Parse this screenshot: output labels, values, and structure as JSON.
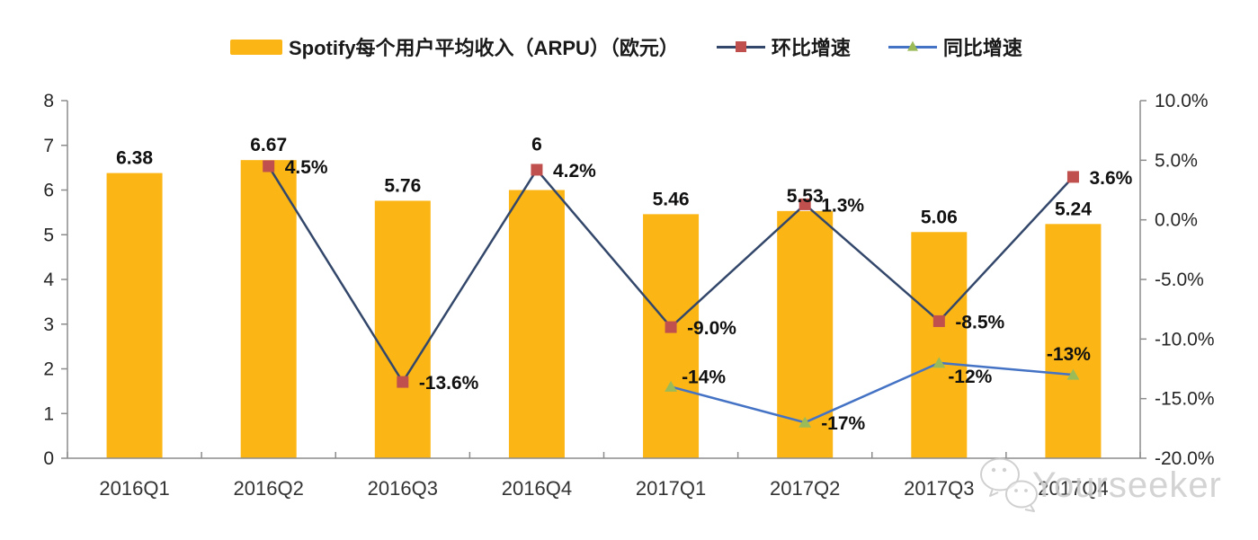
{
  "legend": {
    "items": [
      {
        "label": "Spotify每个用户平均收入（ARPU）（欧元）"
      },
      {
        "label": "环比增速"
      },
      {
        "label": "同比增速"
      }
    ]
  },
  "watermark": {
    "text": "Yourseeker",
    "icon": "wechat-icon"
  },
  "colors": {
    "bar": "#FBB616",
    "qoq_line": "#33476B",
    "qoq_marker": "#C0504D",
    "yoy_line": "#4472C4",
    "yoy_marker": "#9BBB59",
    "axis": "#8C8C8C",
    "text": "#1A1A1A",
    "watermark": "#CCCCCC"
  },
  "chart_data": {
    "type": "bar+line combo",
    "title": "Spotify每个用户平均收入（ARPU）（欧元）",
    "categories": [
      "2016Q1",
      "2016Q2",
      "2016Q3",
      "2016Q4",
      "2017Q1",
      "2017Q2",
      "2017Q3",
      "2017Q4"
    ],
    "series": [
      {
        "name": "Spotify每个用户平均收入（ARPU）（欧元）",
        "type": "bar",
        "axis": "left",
        "values": [
          6.38,
          6.67,
          5.76,
          6,
          5.46,
          5.53,
          5.06,
          5.24
        ],
        "labels": [
          "6.38",
          "6.67",
          "5.76",
          "6",
          "5.46",
          "5.53",
          "5.06",
          "5.24"
        ],
        "label_offsets": {
          "3": {
            "dy": -44
          }
        }
      },
      {
        "name": "环比增速",
        "type": "line",
        "axis": "right",
        "marker": "square",
        "values": [
          null,
          4.5,
          -13.6,
          4.2,
          -9.0,
          1.3,
          -8.5,
          3.6
        ],
        "labels": [
          null,
          "4.5%",
          "-13.6%",
          "4.2%",
          "-9.0%",
          "1.3%",
          "-8.5%",
          "3.6%"
        ],
        "label_offsets": {}
      },
      {
        "name": "同比增速",
        "type": "line",
        "axis": "right",
        "marker": "triangle",
        "values": [
          null,
          null,
          null,
          null,
          -14,
          -17,
          -12,
          -13
        ],
        "labels": [
          null,
          null,
          null,
          null,
          "-14%",
          "-17%",
          "-12%",
          "-13%"
        ],
        "label_offsets": {
          "4": {
            "dx": 12,
            "dy": -4
          },
          "6": {
            "dx": 10,
            "dy": 22
          },
          "7": {
            "dx": -5,
            "dy": -16,
            "anchor": "middle"
          }
        }
      }
    ],
    "left_axis": {
      "min": 0,
      "max": 8,
      "tick_values": [
        0,
        1,
        2,
        3,
        4,
        5,
        6,
        7,
        8
      ],
      "tick_labels": [
        "0",
        "1",
        "2",
        "3",
        "4",
        "5",
        "6",
        "7",
        "8"
      ]
    },
    "right_axis": {
      "min": -20,
      "max": 10,
      "tick_values": [
        10,
        5,
        0,
        -5,
        -10,
        -15,
        -20
      ],
      "tick_labels": [
        "10.0%",
        "5.0%",
        "0.0%",
        "-5.0%",
        "-10.0%",
        "-15.0%",
        "-20.0%"
      ]
    },
    "grid": false,
    "legend_position": "top"
  }
}
